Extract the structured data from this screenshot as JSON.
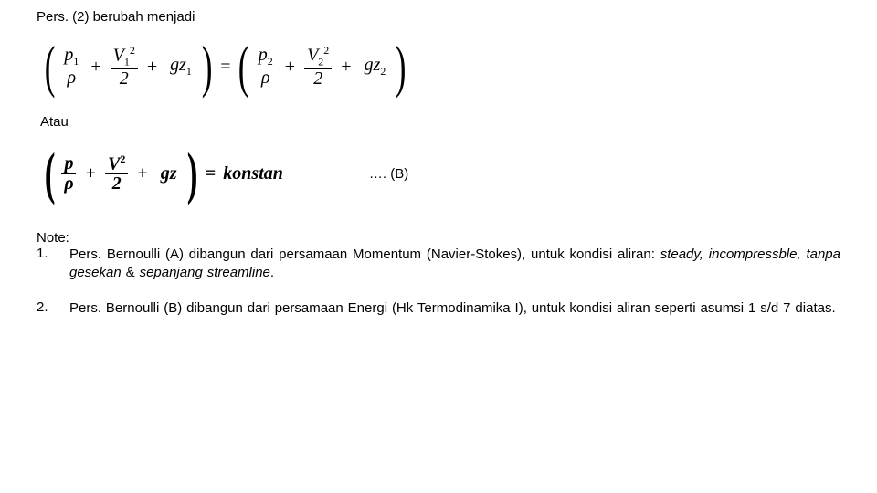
{
  "intro": "Pers. (2) berubah menjadi",
  "eq1": {
    "lhs": {
      "frac1_num": "p",
      "frac1_sub": "1",
      "frac1_den": "ρ",
      "frac2_num": "V",
      "frac2_sub": "1",
      "frac2_den": "2",
      "gz": "gz",
      "gz_sub": "1"
    },
    "rhs": {
      "frac1_num": "p",
      "frac1_sub": "2",
      "frac1_den": "ρ",
      "frac2_num": "V",
      "frac2_sub": "2",
      "frac2_den": "2",
      "gz": "gz",
      "gz_sub": "2"
    }
  },
  "atau": "Atau",
  "eq2": {
    "frac1_num": "p",
    "frac1_den": "ρ",
    "frac2_num": "V",
    "frac2_sup": "2",
    "frac2_den": "2",
    "gz": "gz",
    "rhs": "konstan"
  },
  "eq2_tag": "…. (B)",
  "note_label": "Note:",
  "notes": [
    {
      "num": "1.",
      "plain1": "Pers. Bernoulli (A) dibangun dari persamaan Momentum (Navier-Stokes), untuk kondisi aliran: ",
      "ital1": "steady, incompressble, tanpa gesekan",
      "plain2": " & ",
      "ital2_uline": "sepanjang streamline",
      "plain3": "."
    },
    {
      "num": "2.",
      "plain1": "Pers. Bernoulli (B) dibangun dari persamaan Energi (Hk Termodinamika I), untuk kondisi aliran seperti asumsi 1 s/d 7 diatas."
    }
  ]
}
